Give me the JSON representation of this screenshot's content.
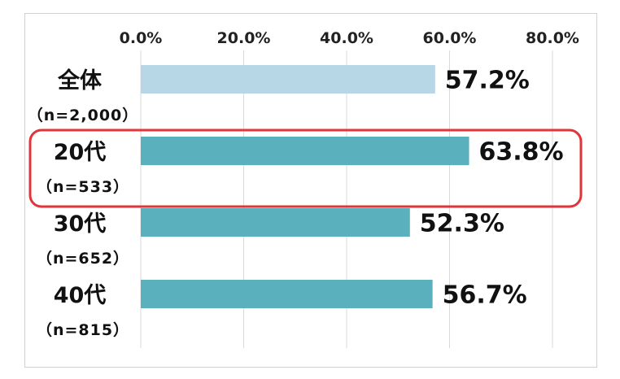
{
  "chart_data": {
    "type": "bar",
    "orientation": "horizontal",
    "categories": [
      "全体",
      "20代",
      "30代",
      "40代"
    ],
    "category_sublabels": [
      "（n=2,000）",
      "（n=533）",
      "（n=652）",
      "（n=815）"
    ],
    "values": [
      57.2,
      63.8,
      52.3,
      56.7
    ],
    "value_labels": [
      "57.2%",
      "63.8%",
      "52.3%",
      "56.7%"
    ],
    "xlim": [
      0,
      80
    ],
    "x_ticks": [
      0,
      20,
      40,
      60,
      80
    ],
    "x_tick_labels": [
      "0.0%",
      "20.0%",
      "40.0%",
      "60.0%",
      "80.0%"
    ],
    "x_axis_position": "top",
    "grid": "vertical",
    "legend": "none",
    "highlighted_category": "20代",
    "bar_colors": [
      "#b7d6e6",
      "#5bb0be",
      "#5bb0be",
      "#5bb0be"
    ],
    "highlight_box_color": "#e0353a",
    "grid_color": "#d9d9d9"
  }
}
